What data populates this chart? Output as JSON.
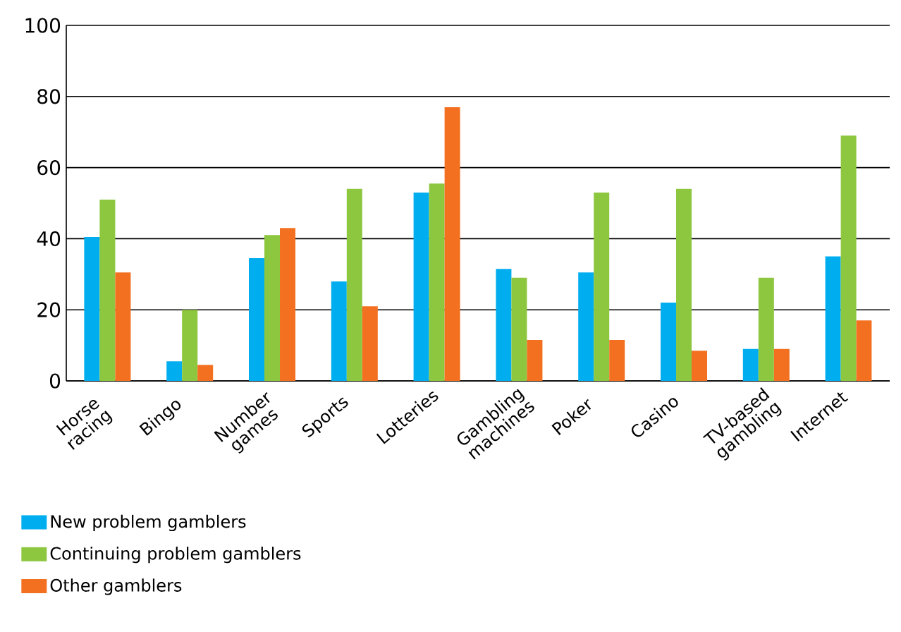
{
  "chart_data": {
    "type": "bar",
    "categories": [
      "Horse racing",
      "Bingo",
      "Number games",
      "Sports",
      "Lotteries",
      "Gambling machines",
      "Poker",
      "Casino",
      "TV-based gambling",
      "Internet"
    ],
    "series": [
      {
        "name": "New problem gamblers",
        "color": "#00aeef",
        "values": [
          40.5,
          5.5,
          34.5,
          28,
          53,
          31.5,
          30.5,
          22,
          9,
          35
        ]
      },
      {
        "name": "Continuing problem gamblers",
        "color": "#8dc63f",
        "values": [
          51,
          20,
          41,
          54,
          55.5,
          29,
          53,
          54,
          29,
          69
        ]
      },
      {
        "name": "Other gamblers",
        "color": "#f37021",
        "values": [
          30.5,
          4.5,
          43,
          21,
          77,
          11.5,
          11.5,
          8.5,
          9,
          17
        ]
      }
    ],
    "ylim": [
      0,
      100
    ],
    "yticks": [
      0,
      20,
      40,
      60,
      80,
      100
    ],
    "grid": "y",
    "legend": "bottom left"
  }
}
